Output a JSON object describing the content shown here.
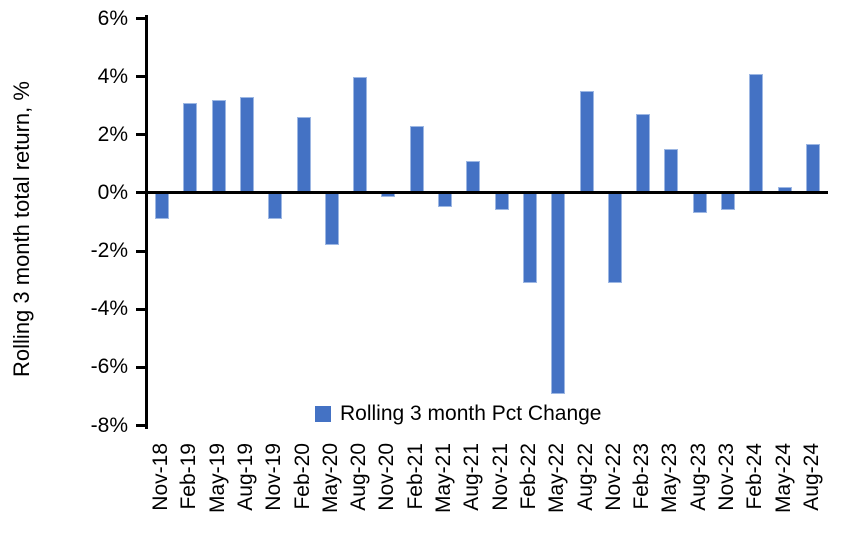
{
  "chart_data": {
    "type": "bar",
    "title": "",
    "xlabel": "",
    "ylabel": "Rolling 3 month total return, %",
    "legend": [
      "Rolling 3 month Pct Change"
    ],
    "legend_position": "bottom-center-inside",
    "grid": false,
    "ylim": [
      -8,
      6
    ],
    "ytick_step": 2,
    "yticks": [
      6,
      4,
      2,
      0,
      -2,
      -4,
      -6,
      -8
    ],
    "ytick_labels": [
      "6%",
      "4%",
      "2%",
      "0%",
      "-2%",
      "-4%",
      "-6%",
      "-8%"
    ],
    "bar_color": "#4472C4",
    "bar_edge_color": "#9DB7E3",
    "axis_color": "#000000",
    "categories": [
      "Nov-18",
      "Feb-19",
      "May-19",
      "Aug-19",
      "Nov-19",
      "Feb-20",
      "May-20",
      "Aug-20",
      "Nov-20",
      "Feb-21",
      "May-21",
      "Aug-21",
      "Nov-21",
      "Feb-22",
      "May-22",
      "Aug-22",
      "Nov-22",
      "Feb-23",
      "May-23",
      "Aug-23",
      "Nov-23",
      "Feb-24",
      "May-24",
      "Aug-24"
    ],
    "values": [
      -0.9,
      3.1,
      3.2,
      3.3,
      -0.9,
      2.6,
      -1.8,
      4.0,
      -0.15,
      2.3,
      -0.5,
      1.1,
      -0.6,
      -3.1,
      -6.9,
      3.5,
      -3.1,
      2.7,
      1.5,
      -0.7,
      -0.6,
      4.1,
      0.2,
      1.7
    ]
  }
}
